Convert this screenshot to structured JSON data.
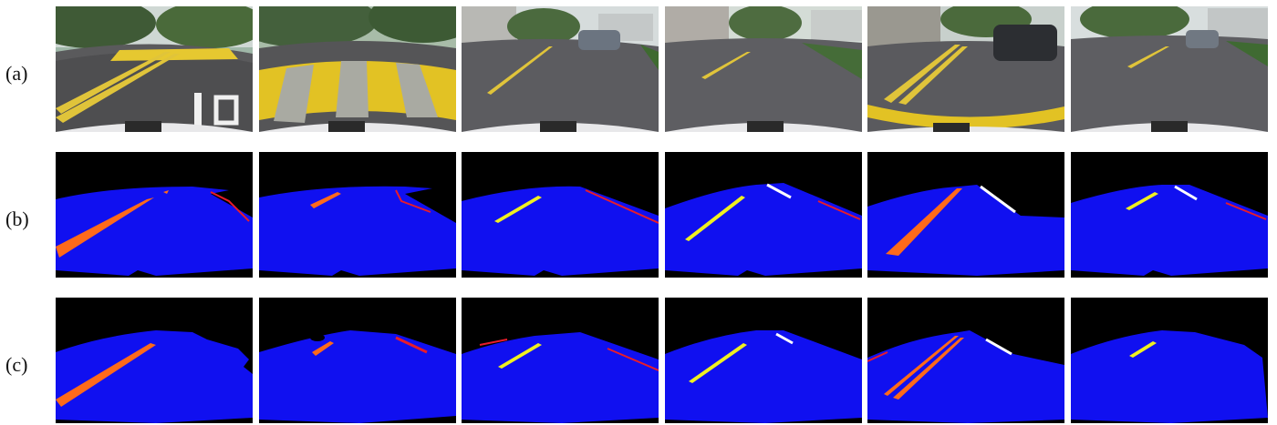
{
  "rows": [
    {
      "label": "(a)"
    },
    {
      "label": "(b)"
    },
    {
      "label": "(c)"
    }
  ],
  "colors": {
    "drivable_area": "#1010f0",
    "background": "#000000",
    "yellow_lane": "#f0f020",
    "orange_marking": "#ff6a1a",
    "red_boundary": "#e81c2a",
    "white_marking": "#ffffff"
  }
}
